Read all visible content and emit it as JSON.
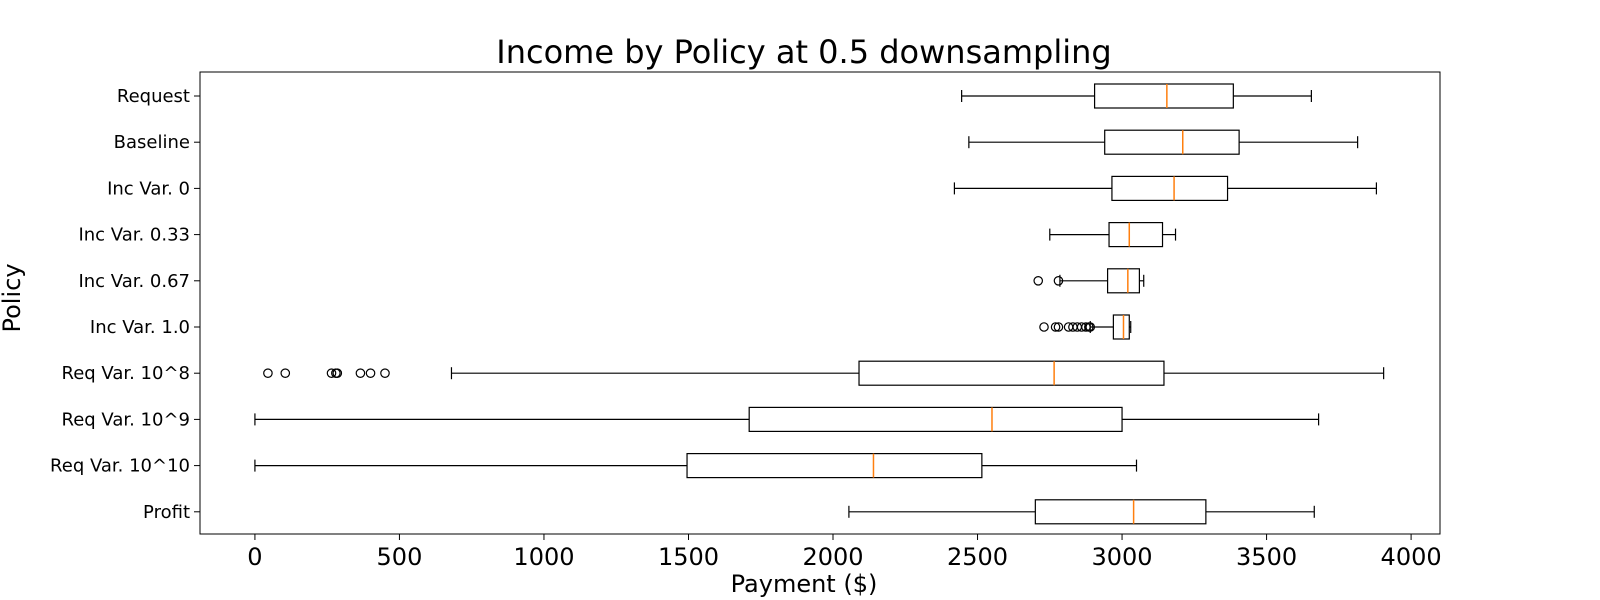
{
  "chart_data": {
    "type": "box",
    "title": "Income by Policy at 0.5 downsampling",
    "xlabel": "Payment ($)",
    "ylabel": "Policy",
    "xlim": [
      -190,
      4100
    ],
    "xticks": [
      "0",
      "500",
      "1000",
      "1500",
      "2000",
      "2500",
      "3000",
      "3500",
      "4000"
    ],
    "xtick_values": [
      0,
      500,
      1000,
      1500,
      2000,
      2500,
      3000,
      3500,
      4000
    ],
    "grid": false,
    "box_color": "#000000",
    "median_color": "#ff7f0e",
    "series": [
      {
        "name": "Request",
        "whisker_low": 2445,
        "q1": 2905,
        "median": 3155,
        "q3": 3385,
        "whisker_high": 3655,
        "outliers": []
      },
      {
        "name": "Baseline",
        "whisker_low": 2470,
        "q1": 2940,
        "median": 3210,
        "q3": 3405,
        "whisker_high": 3815,
        "outliers": []
      },
      {
        "name": "Inc Var.  0",
        "whisker_low": 2420,
        "q1": 2965,
        "median": 3180,
        "q3": 3365,
        "whisker_high": 3880,
        "outliers": []
      },
      {
        "name": "Inc Var.  0.33",
        "whisker_low": 2750,
        "q1": 2955,
        "median": 3025,
        "q3": 3140,
        "whisker_high": 3185,
        "outliers": []
      },
      {
        "name": "Inc Var.  0.67",
        "whisker_low": 2785,
        "q1": 2950,
        "median": 3020,
        "q3": 3060,
        "whisker_high": 3075,
        "outliers": [
          2710,
          2780
        ]
      },
      {
        "name": "Inc Var.  1.0",
        "whisker_low": 2890,
        "q1": 2970,
        "median": 3005,
        "q3": 3025,
        "whisker_high": 3030,
        "outliers": [
          2730,
          2770,
          2780,
          2815,
          2830,
          2845,
          2860,
          2875,
          2885,
          2890
        ]
      },
      {
        "name": "Req Var.  10^8",
        "whisker_low": 680,
        "q1": 2090,
        "median": 2765,
        "q3": 3145,
        "whisker_high": 3905,
        "outliers": [
          45,
          105,
          265,
          280,
          285,
          365,
          400,
          450
        ]
      },
      {
        "name": "Req Var.  10^9",
        "whisker_low": 0,
        "q1": 1710,
        "median": 2550,
        "q3": 3000,
        "whisker_high": 3680,
        "outliers": []
      },
      {
        "name": "Req Var.  10^10",
        "whisker_low": 0,
        "q1": 1495,
        "median": 2140,
        "q3": 2515,
        "whisker_high": 3050,
        "outliers": []
      },
      {
        "name": "Profit",
        "whisker_low": 2055,
        "q1": 2700,
        "median": 3040,
        "q3": 3290,
        "whisker_high": 3665,
        "outliers": []
      }
    ]
  }
}
